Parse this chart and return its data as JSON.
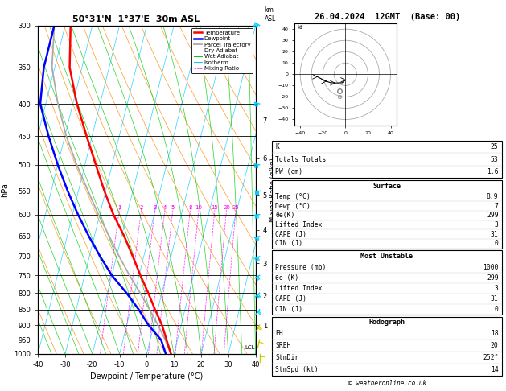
{
  "title_left": "50°31'N  1°37'E  30m ASL",
  "title_right": "26.04.2024  12GMT  (Base: 00)",
  "xlabel": "Dewpoint / Temperature (°C)",
  "ylabel_left": "hPa",
  "x_min": -40,
  "x_max": 40,
  "p_levels": [
    300,
    350,
    400,
    450,
    500,
    550,
    600,
    650,
    700,
    750,
    800,
    850,
    900,
    950,
    1000
  ],
  "p_min": 300,
  "p_max": 1000,
  "isotherm_color": "#00ccff",
  "dry_adiabat_color": "#ff8800",
  "wet_adiabat_color": "#00cc00",
  "mixing_ratio_color": "#ff00ff",
  "temp_color": "#ff0000",
  "dewp_color": "#0000ff",
  "parcel_color": "#aaaaaa",
  "legend_labels": [
    "Temperature",
    "Dewpoint",
    "Parcel Trajectory",
    "Dry Adiabat",
    "Wet Adiabat",
    "Isotherm",
    "Mixing Ratio"
  ],
  "legend_colors": [
    "#ff0000",
    "#0000ff",
    "#aaaaaa",
    "#ff8800",
    "#00cc00",
    "#00ccff",
    "#ff00ff"
  ],
  "skew_factor": 30.0,
  "temp_profile": {
    "pressure": [
      1000,
      950,
      900,
      850,
      800,
      750,
      700,
      650,
      600,
      550,
      500,
      450,
      400,
      350,
      300
    ],
    "temperature": [
      8.9,
      6.0,
      3.0,
      -1.0,
      -5.0,
      -9.5,
      -14.0,
      -19.0,
      -25.0,
      -30.5,
      -36.0,
      -42.0,
      -48.5,
      -54.5,
      -58.0
    ]
  },
  "dewp_profile": {
    "pressure": [
      1000,
      950,
      900,
      850,
      800,
      750,
      700,
      650,
      600,
      550,
      500,
      450,
      400,
      350,
      300
    ],
    "temperature": [
      7.0,
      4.0,
      -2.0,
      -7.0,
      -13.0,
      -20.0,
      -26.0,
      -32.0,
      -38.0,
      -44.0,
      -50.0,
      -56.0,
      -62.0,
      -64.0,
      -64.0
    ]
  },
  "parcel_profile": {
    "pressure": [
      1000,
      950,
      900,
      850,
      800,
      750,
      700,
      650,
      600,
      550,
      500,
      450,
      400,
      350,
      300
    ],
    "temperature": [
      8.9,
      5.5,
      1.5,
      -3.0,
      -8.0,
      -13.5,
      -19.0,
      -24.5,
      -30.5,
      -36.5,
      -43.0,
      -49.5,
      -55.5,
      -61.0,
      -64.0
    ]
  },
  "mixing_ratio_lines": [
    1,
    2,
    3,
    4,
    5,
    8,
    10,
    15,
    20,
    25
  ],
  "km_axis_labels": [
    1,
    2,
    3,
    4,
    5,
    6,
    7
  ],
  "km_axis_pressures": [
    900,
    808,
    718,
    635,
    558,
    488,
    425
  ],
  "surface_data": [
    [
      "Temp (°C)",
      "8.9"
    ],
    [
      "Dewp (°C)",
      "7"
    ],
    [
      "θe(K)",
      "299"
    ],
    [
      "Lifted Index",
      "3"
    ],
    [
      "CAPE (J)",
      "31"
    ],
    [
      "CIN (J)",
      "0"
    ]
  ],
  "unstable_data": [
    [
      "Pressure (mb)",
      "1000"
    ],
    [
      "θe (K)",
      "299"
    ],
    [
      "Lifted Index",
      "3"
    ],
    [
      "CAPE (J)",
      "31"
    ],
    [
      "CIN (J)",
      "0"
    ]
  ],
  "indices": [
    [
      "K",
      "25"
    ],
    [
      "Totals Totals",
      "53"
    ],
    [
      "PW (cm)",
      "1.6"
    ]
  ],
  "hodograph_data": [
    [
      "EH",
      "18"
    ],
    [
      "SREH",
      "20"
    ],
    [
      "StmDir",
      "252°"
    ],
    [
      "StmSpd (kt)",
      "14"
    ]
  ],
  "wind_barbs": [
    [
      1000,
      5,
      180,
      "#cccc00"
    ],
    [
      950,
      8,
      200,
      "#cccc00"
    ],
    [
      900,
      10,
      220,
      "#cccc00"
    ],
    [
      850,
      12,
      230,
      "#00ccff"
    ],
    [
      800,
      15,
      240,
      "#00ccff"
    ],
    [
      750,
      18,
      250,
      "#00ccff"
    ],
    [
      700,
      20,
      255,
      "#00ccff"
    ],
    [
      650,
      22,
      260,
      "#00ccff"
    ],
    [
      600,
      25,
      265,
      "#00ccff"
    ],
    [
      550,
      28,
      270,
      "#00ccff"
    ],
    [
      500,
      30,
      275,
      "#00ccff"
    ],
    [
      400,
      35,
      280,
      "#00ccff"
    ],
    [
      300,
      40,
      290,
      "#00ccff"
    ]
  ],
  "lcl_pressure": 990,
  "footer": "© weatheronline.co.uk"
}
